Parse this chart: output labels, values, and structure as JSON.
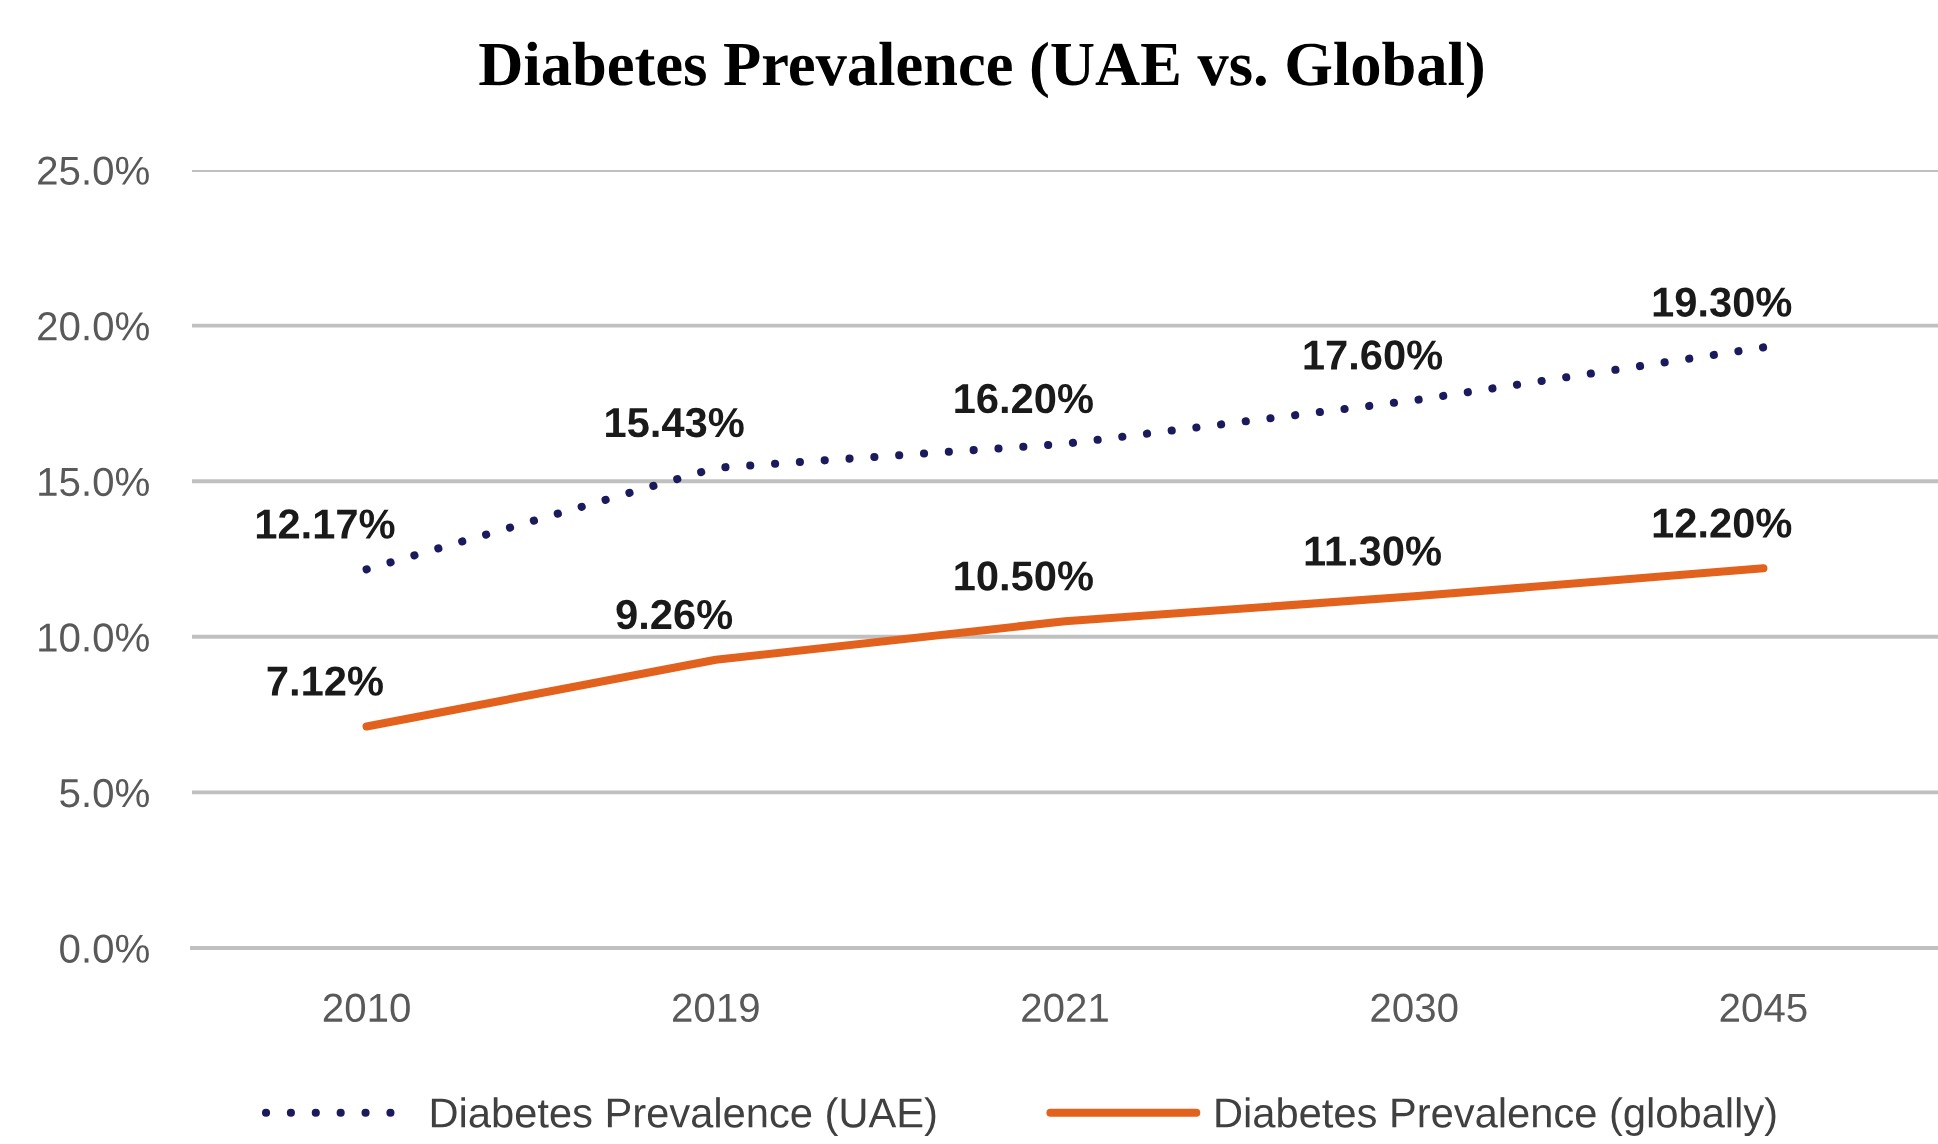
{
  "chart_data": {
    "type": "line",
    "title": "Diabetes Prevalence (UAE vs. Global)",
    "categories": [
      "2010",
      "2019",
      "2021",
      "2030",
      "2045"
    ],
    "series": [
      {
        "name": "Diabetes Prevalence (UAE)",
        "color": "#1b1a5c",
        "line_style": "dotted",
        "values": [
          12.17,
          15.43,
          16.2,
          17.6,
          19.3
        ],
        "value_labels": [
          "12.17%",
          "15.43%",
          "16.20%",
          "17.60%",
          "19.30%"
        ]
      },
      {
        "name": "Diabetes Prevalence (globally)",
        "color": "#e2611c",
        "line_style": "solid",
        "values": [
          7.12,
          9.26,
          10.5,
          11.3,
          12.2
        ],
        "value_labels": [
          "7.12%",
          "9.26%",
          "10.50%",
          "11.30%",
          "12.20%"
        ]
      }
    ],
    "ylim": [
      0,
      25
    ],
    "yticks": [
      {
        "value": 0,
        "label": "0.0%"
      },
      {
        "value": 5,
        "label": "5.0%"
      },
      {
        "value": 10,
        "label": "10.0%"
      },
      {
        "value": 15,
        "label": "15.0%"
      },
      {
        "value": 20,
        "label": "20.0%"
      },
      {
        "value": 25,
        "label": "25.0%"
      }
    ],
    "grid": "y",
    "legend": "bottom"
  }
}
